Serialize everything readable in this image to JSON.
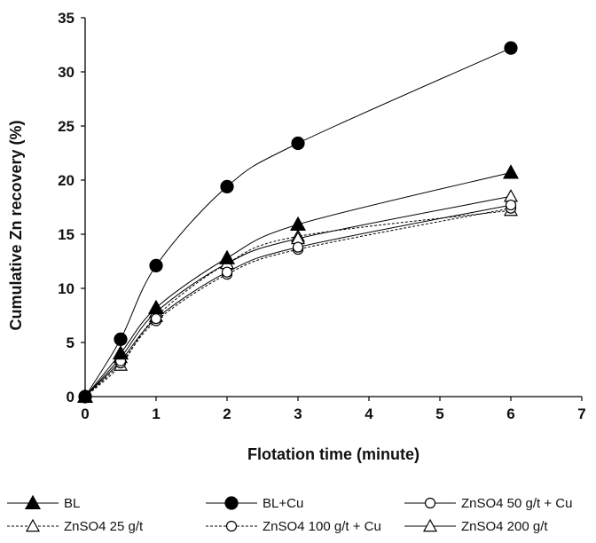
{
  "chart_data": {
    "type": "line",
    "title": "",
    "xlabel": "Flotation time (minute)",
    "ylabel": "Cumulative Zn recovery  (%)",
    "xlim": [
      0,
      7
    ],
    "ylim": [
      0,
      35
    ],
    "xticks": [
      0,
      1,
      2,
      3,
      4,
      5,
      6,
      7
    ],
    "yticks": [
      0,
      5,
      10,
      15,
      20,
      25,
      30,
      35
    ],
    "grid": false,
    "legend_position": "bottom",
    "x": [
      0,
      0.5,
      1,
      2,
      3,
      6
    ],
    "series": [
      {
        "name": "BL",
        "marker": "filled-triangle",
        "dash": "solid",
        "color": "#000000",
        "values": [
          0,
          4.0,
          8.2,
          12.8,
          15.9,
          20.7
        ]
      },
      {
        "name": "BL+Cu",
        "marker": "filled-circle",
        "dash": "solid",
        "color": "#000000",
        "values": [
          0,
          5.3,
          12.1,
          19.4,
          23.4,
          32.2
        ]
      },
      {
        "name": "ZnSO4 50 g/t + Cu",
        "marker": "open-circle",
        "dash": "solid",
        "color": "#000000",
        "values": [
          0,
          3.3,
          7.2,
          11.5,
          13.8,
          17.7
        ]
      },
      {
        "name": "ZnSO4 25 g/t",
        "marker": "open-triangle",
        "dash": "dotted",
        "color": "#000000",
        "values": [
          0,
          2.9,
          7.4,
          12.3,
          14.8,
          17.2
        ]
      },
      {
        "name": "ZnSO4 100 g/t + Cu",
        "marker": "open-circle",
        "dash": "dotted",
        "color": "#000000",
        "values": [
          0,
          3.1,
          7.0,
          11.3,
          13.6,
          17.4
        ]
      },
      {
        "name": "ZnSO4 200 g/t",
        "marker": "open-triangle",
        "dash": "solid",
        "color": "#000000",
        "values": [
          0,
          3.6,
          7.8,
          12.3,
          14.6,
          18.5
        ]
      }
    ]
  }
}
